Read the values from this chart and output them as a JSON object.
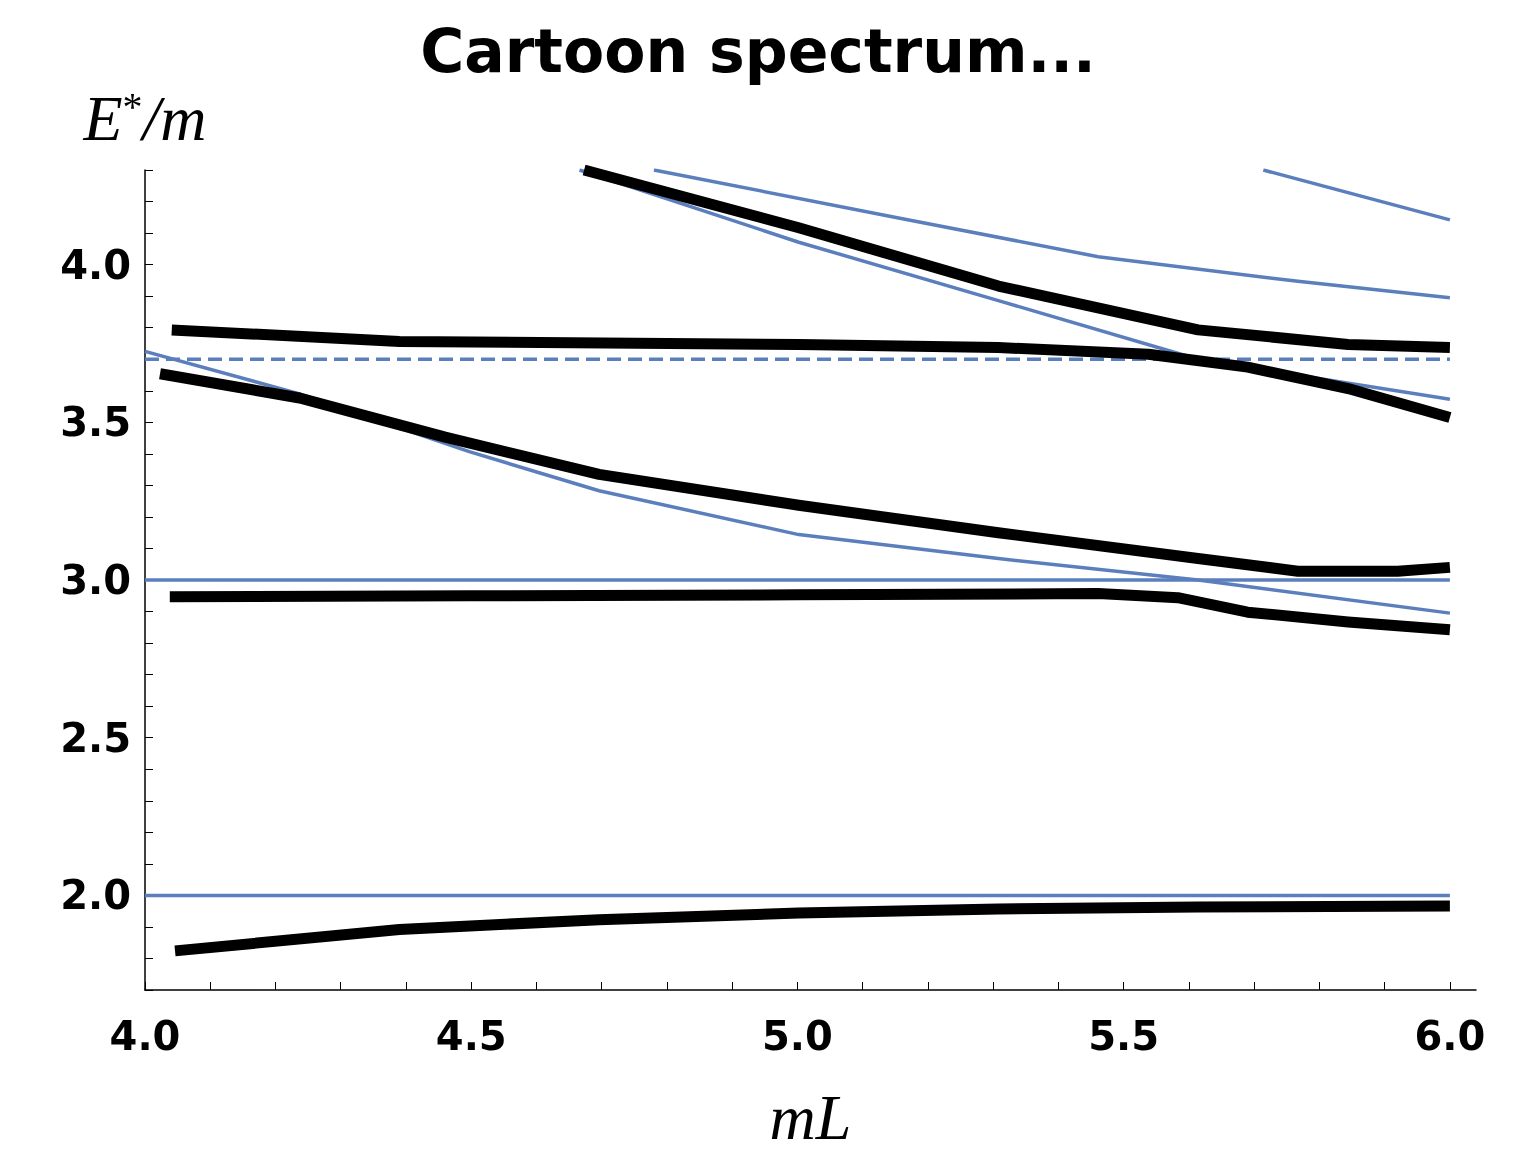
{
  "chart_data": {
    "type": "line",
    "title": "Cartoon spectrum...",
    "xlabel": "mL",
    "ylabel": "E$^{*}$/m",
    "xlim": [
      4.0,
      6.04
    ],
    "ylim": [
      1.7,
      4.3
    ],
    "xticks": [
      {
        "value": 4.0,
        "label": "4.0"
      },
      {
        "value": 4.1,
        "label": null
      },
      {
        "value": 4.2,
        "label": null
      },
      {
        "value": 4.3,
        "label": null
      },
      {
        "value": 4.4,
        "label": null
      },
      {
        "value": 4.5,
        "label": "4.5"
      },
      {
        "value": 4.6,
        "label": null
      },
      {
        "value": 4.7,
        "label": null
      },
      {
        "value": 4.8,
        "label": null
      },
      {
        "value": 4.9,
        "label": null
      },
      {
        "value": 5.0,
        "label": "5.0"
      },
      {
        "value": 5.1,
        "label": null
      },
      {
        "value": 5.2,
        "label": null
      },
      {
        "value": 5.3,
        "label": null
      },
      {
        "value": 5.4,
        "label": null
      },
      {
        "value": 5.5,
        "label": "5.5"
      },
      {
        "value": 5.6,
        "label": null
      },
      {
        "value": 5.7,
        "label": null
      },
      {
        "value": 5.8,
        "label": null
      },
      {
        "value": 5.9,
        "label": null
      },
      {
        "value": 6.0,
        "label": "6.0"
      }
    ],
    "yticks": [
      {
        "value": 1.7,
        "label": null
      },
      {
        "value": 1.8,
        "label": null
      },
      {
        "value": 1.9,
        "label": null
      },
      {
        "value": 2.0,
        "label": "2.0"
      },
      {
        "value": 2.1,
        "label": null
      },
      {
        "value": 2.2,
        "label": null
      },
      {
        "value": 2.3,
        "label": null
      },
      {
        "value": 2.4,
        "label": null
      },
      {
        "value": 2.5,
        "label": "2.5"
      },
      {
        "value": 2.6,
        "label": null
      },
      {
        "value": 2.7,
        "label": null
      },
      {
        "value": 2.8,
        "label": null
      },
      {
        "value": 2.9,
        "label": null
      },
      {
        "value": 3.0,
        "label": "3.0"
      },
      {
        "value": 3.1,
        "label": null
      },
      {
        "value": 3.2,
        "label": null
      },
      {
        "value": 3.3,
        "label": null
      },
      {
        "value": 3.4,
        "label": null
      },
      {
        "value": 3.5,
        "label": "3.5"
      },
      {
        "value": 3.6,
        "label": null
      },
      {
        "value": 3.7,
        "label": null
      },
      {
        "value": 3.8,
        "label": null
      },
      {
        "value": 3.9,
        "label": null
      },
      {
        "value": 4.0,
        "label": "4.0"
      },
      {
        "value": 4.1,
        "label": null
      },
      {
        "value": 4.2,
        "label": null
      },
      {
        "value": 4.3,
        "label": null
      }
    ],
    "grid": false,
    "marker": "none",
    "line_style": "solid",
    "series": [
      {
        "color": "#5b7fbd",
        "x": [
          4.0,
          6.0
        ],
        "values": [
          2.0,
          2.0
        ]
      },
      {
        "color": "#5b7fbd",
        "x": [
          4.0,
          6.0
        ],
        "values": [
          3.0,
          3.0
        ]
      },
      {
        "color": "#5b7fbd",
        "line_style": "dashed",
        "x": [
          4.0,
          6.0
        ],
        "values": [
          3.7,
          3.7
        ]
      },
      {
        "color": "#5b7fbd",
        "x": [
          4.0,
          4.237,
          4.497,
          4.696,
          5.002,
          5.308,
          5.614,
          6.0
        ],
        "values": [
          3.725,
          3.59,
          3.407,
          3.283,
          3.144,
          3.068,
          3.0,
          2.895
        ]
      },
      {
        "color": "#5b7fbd",
        "x": [
          4.666,
          5.002,
          5.308,
          5.614,
          6.0
        ],
        "values": [
          4.3,
          4.071,
          3.886,
          3.7,
          3.573
        ]
      },
      {
        "color": "#5b7fbd",
        "x": [
          4.78,
          5.155,
          5.461,
          5.767,
          6.0
        ],
        "values": [
          4.3,
          4.148,
          4.025,
          3.947,
          3.895
        ]
      },
      {
        "color": "#5b7fbd",
        "x": [
          5.714,
          6.0
        ],
        "values": [
          4.3,
          4.142
        ]
      },
      {
        "color": "#000000",
        "x": [
          4.046,
          4.39,
          4.696,
          5.002,
          5.308,
          5.614,
          6.0
        ],
        "values": [
          1.824,
          1.892,
          1.923,
          1.944,
          1.957,
          1.963,
          1.966
        ]
      },
      {
        "color": "#000000",
        "x": [
          4.038,
          4.5,
          5.0,
          5.461,
          5.583,
          5.69,
          5.844,
          6.0
        ],
        "values": [
          2.947,
          2.95,
          2.953,
          2.957,
          2.944,
          2.898,
          2.867,
          2.842
        ]
      },
      {
        "color": "#000000",
        "x": [
          4.023,
          4.237,
          4.46,
          4.696,
          5.002,
          5.308,
          5.614,
          5.767,
          5.92,
          6.0
        ],
        "values": [
          3.654,
          3.577,
          3.453,
          3.335,
          3.237,
          3.15,
          3.068,
          3.028,
          3.028,
          3.04
        ]
      },
      {
        "color": "#000000",
        "x": [
          4.041,
          4.39,
          5.002,
          5.308,
          5.538,
          5.69,
          5.844,
          6.0
        ],
        "values": [
          3.793,
          3.756,
          3.747,
          3.737,
          3.716,
          3.675,
          3.607,
          3.515
        ]
      },
      {
        "color": "#000000",
        "x": [
          4.673,
          5.002,
          5.308,
          5.614,
          5.844,
          6.0
        ],
        "values": [
          4.3,
          4.117,
          3.932,
          3.793,
          3.747,
          3.737
        ]
      }
    ]
  }
}
